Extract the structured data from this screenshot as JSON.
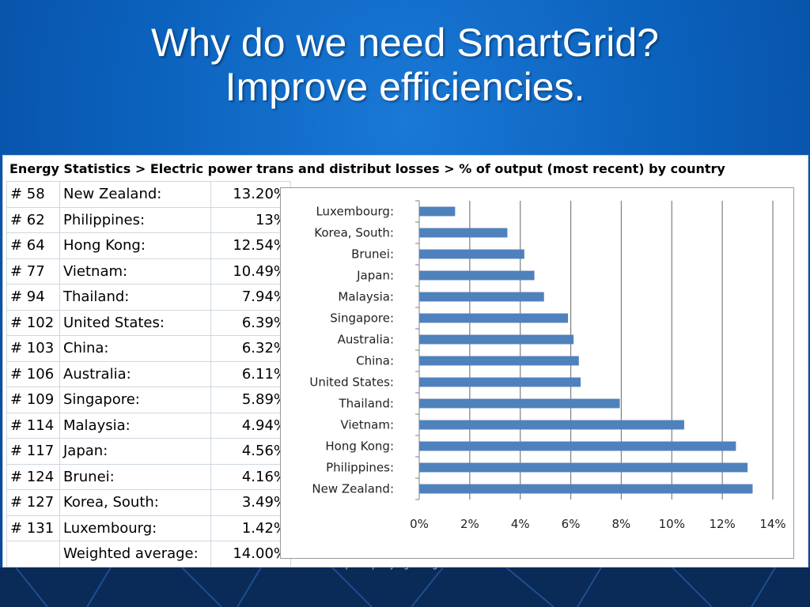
{
  "slide": {
    "title_line1": "Why do we need SmartGrid?",
    "title_line2": "Improve efficiencies.",
    "footer": "www.powerquality.org - all rights reserved"
  },
  "colors": {
    "background": "#0b5fb8",
    "bar": "#4f81bd",
    "grid": "#7f7f7f"
  },
  "sheet": {
    "header": "Energy Statistics > Electric power trans and distribut  losses > % of output (most recent) by country",
    "rows": [
      {
        "rank": "# 58",
        "country": "New Zealand:",
        "value": "13.20%"
      },
      {
        "rank": "# 62",
        "country": "Philippines:",
        "value": "13%"
      },
      {
        "rank": "# 64",
        "country": "Hong Kong:",
        "value": "12.54%"
      },
      {
        "rank": "# 77",
        "country": "Vietnam:",
        "value": "10.49%"
      },
      {
        "rank": "# 94",
        "country": "Thailand:",
        "value": "7.94%"
      },
      {
        "rank": "# 102",
        "country": "United States:",
        "value": "6.39%"
      },
      {
        "rank": "# 103",
        "country": "China:",
        "value": "6.32%"
      },
      {
        "rank": "# 106",
        "country": "Australia:",
        "value": "6.11%"
      },
      {
        "rank": "# 109",
        "country": "Singapore:",
        "value": "5.89%"
      },
      {
        "rank": "# 114",
        "country": "Malaysia:",
        "value": "4.94%"
      },
      {
        "rank": "# 117",
        "country": "Japan:",
        "value": "4.56%"
      },
      {
        "rank": "# 124",
        "country": "Brunei:",
        "value": "4.16%"
      },
      {
        "rank": "# 127",
        "country": "Korea, South:",
        "value": "3.49%"
      },
      {
        "rank": "# 131",
        "country": "Luxembourg:",
        "value": "1.42%"
      },
      {
        "rank": "",
        "country": "Weighted average:",
        "value": "14.00%"
      }
    ]
  },
  "chart_data": {
    "type": "bar",
    "orientation": "horizontal",
    "categories": [
      "Luxembourg:",
      "Korea, South:",
      "Brunei:",
      "Japan:",
      "Malaysia:",
      "Singapore:",
      "Australia:",
      "China:",
      "United States:",
      "Thailand:",
      "Vietnam:",
      "Hong Kong:",
      "Philippines:",
      "New Zealand:"
    ],
    "values": [
      1.42,
      3.49,
      4.16,
      4.56,
      4.94,
      5.89,
      6.11,
      6.32,
      6.39,
      7.94,
      10.49,
      12.54,
      13.0,
      13.2
    ],
    "xticks": [
      "0%",
      "2%",
      "4%",
      "6%",
      "8%",
      "10%",
      "12%",
      "14%"
    ],
    "xlim": [
      0,
      14
    ],
    "grid": true,
    "legend": "none"
  }
}
